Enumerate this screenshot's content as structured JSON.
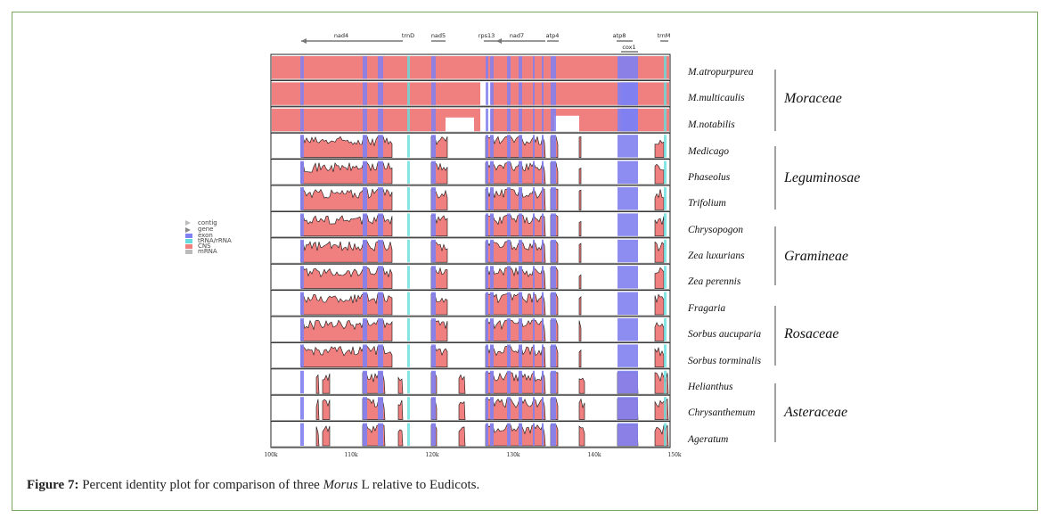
{
  "caption": {
    "label": "Figure 7:",
    "pre": " Percent identity plot for comparison of three ",
    "italic": "Morus",
    "post": " L relative to Eudicots."
  },
  "genes": [
    "nad4",
    "trnD",
    "nad5",
    "rps13",
    "nad7",
    "atp4",
    "atp8",
    "cox1",
    "trnM"
  ],
  "axis_ticks": [
    "100k",
    "110k",
    "120k",
    "130k",
    "140k",
    "150k"
  ],
  "legend": [
    {
      "label": "contig",
      "color": "#bbbbbb"
    },
    {
      "label": "gene",
      "color": "#888888"
    },
    {
      "label": "exon",
      "color": "#8080f0"
    },
    {
      "label": "tRNA/rRNA",
      "color": "#66dddd"
    },
    {
      "label": "CNS",
      "color": "#f08080"
    },
    {
      "label": "mRNA",
      "color": "#bbbbbb"
    }
  ],
  "tracks": [
    {
      "name": "M.atropurpurea",
      "family": "Moraceae"
    },
    {
      "name": "M.multicaulis",
      "family": "Moraceae"
    },
    {
      "name": "M.notabilis",
      "family": "Moraceae"
    },
    {
      "name": "Medicago",
      "family": "Leguminosae"
    },
    {
      "name": "Phaseolus",
      "family": "Leguminosae"
    },
    {
      "name": "Trifolium",
      "family": "Leguminosae"
    },
    {
      "name": "Chrysopogon",
      "family": "Gramineae"
    },
    {
      "name": "Zea luxurians",
      "family": "Gramineae"
    },
    {
      "name": "Zea perennis",
      "family": "Gramineae"
    },
    {
      "name": "Fragaria",
      "family": "Rosaceae"
    },
    {
      "name": "Sorbus aucuparia",
      "family": "Rosaceae"
    },
    {
      "name": "Sorbus torminalis",
      "family": "Rosaceae"
    },
    {
      "name": "Helianthus",
      "family": "Asteraceae"
    },
    {
      "name": "Chrysanthemum",
      "family": "Asteraceae"
    },
    {
      "name": "Ageratum",
      "family": "Asteraceae"
    }
  ],
  "families": [
    "Moraceae",
    "Leguminosae",
    "Gramineae",
    "Rosaceae",
    "Asteraceae"
  ],
  "colors": {
    "cns": "#f08080",
    "exon": "#8080f0",
    "trna": "#66dddd",
    "frame": "#7aa760"
  }
}
